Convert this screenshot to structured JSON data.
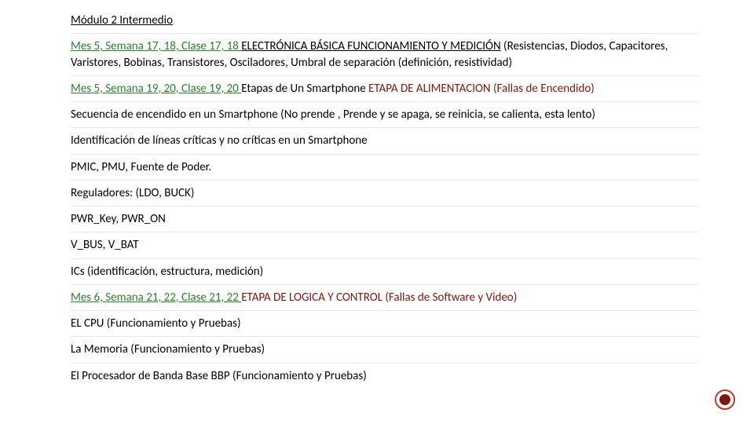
{
  "colors": {
    "green": "#2e7d32",
    "darkred": "#7b1810",
    "text": "#000000",
    "border": "#e8e8e8",
    "accent_ring": "#c0392b"
  },
  "typography": {
    "font_family": "Calibri",
    "font_size_pt": 11,
    "line_height": 1.35
  },
  "title": "Módulo 2 Intermedio",
  "lines": {
    "l1_green": "Mes 5, Semana 17, 18, Clase 17, 18 ",
    "l1_mid": "ELECTRÓNICA BÁSICA FUNCIONAMIENTO Y MEDICIÓN",
    "l1_tail": " (Resistencias, Diodos, Capacitores, Varistores, Bobinas, Transistores, Osciladores, Umbral de separación (definición, resistividad)",
    "l2_green": "Mes 5, Semana 19, 20, Clase 19, 20 ",
    "l2_mid": "Etapas de Un Smartphone ",
    "l2_red": "ETAPA DE ALIMENTACION (Fallas de Encendido)",
    "l3": "Secuencia de encendido en un Smartphone (No prende , Prende y se apaga, se reinicia, se calienta, esta lento)",
    "l4": "Identificación de líneas críticas y no críticas en un Smartphone",
    "l5": "PMIC, PMU, Fuente de Poder.",
    "l6": "Reguladores: (LDO, BUCK)",
    "l7": "PWR_Key, PWR_ON",
    "l8": "V_BUS, V_BAT",
    "l9": "ICs (identificación, estructura, medición)",
    "l10_green": "Mes 6, Semana 21, 22, Clase 21, 22 ",
    "l10_red": "ETAPA DE LOGICA Y CONTROL (Fallas de Software y Video)",
    "l11": "EL CPU (Funcionamiento y Pruebas)",
    "l12": "La Memoria (Funcionamiento y Pruebas)",
    "l13": "El Procesador de Banda Base BBP (Funcionamiento y Pruebas)"
  }
}
